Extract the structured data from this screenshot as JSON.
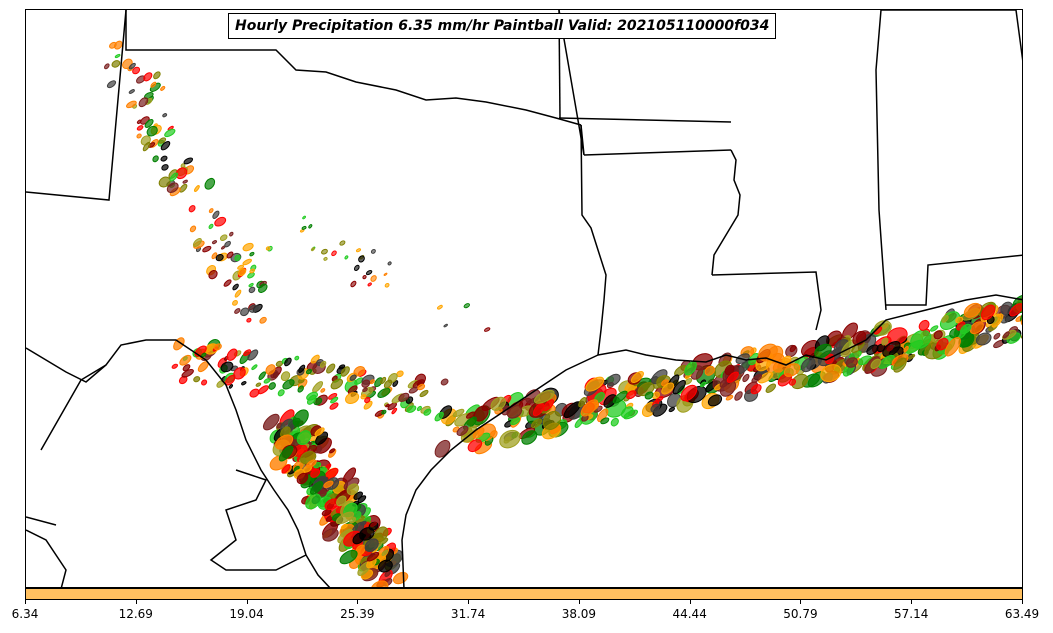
{
  "title": "Hourly Precipitation 6.35 mm/hr Paintball Valid: 202105110000f034",
  "colorbar": {
    "color": "#ffc060",
    "ticks": [
      "6.34",
      "12.69",
      "19.04",
      "25.39",
      "31.74",
      "38.09",
      "44.44",
      "50.79",
      "57.14",
      "63.49"
    ]
  },
  "member_colors": [
    "#ff0000",
    "#ff8000",
    "#ffa500",
    "#22cc22",
    "#008000",
    "#808000",
    "#a0a020",
    "#8b0000",
    "#7b2020",
    "#000000",
    "#404040"
  ]
}
